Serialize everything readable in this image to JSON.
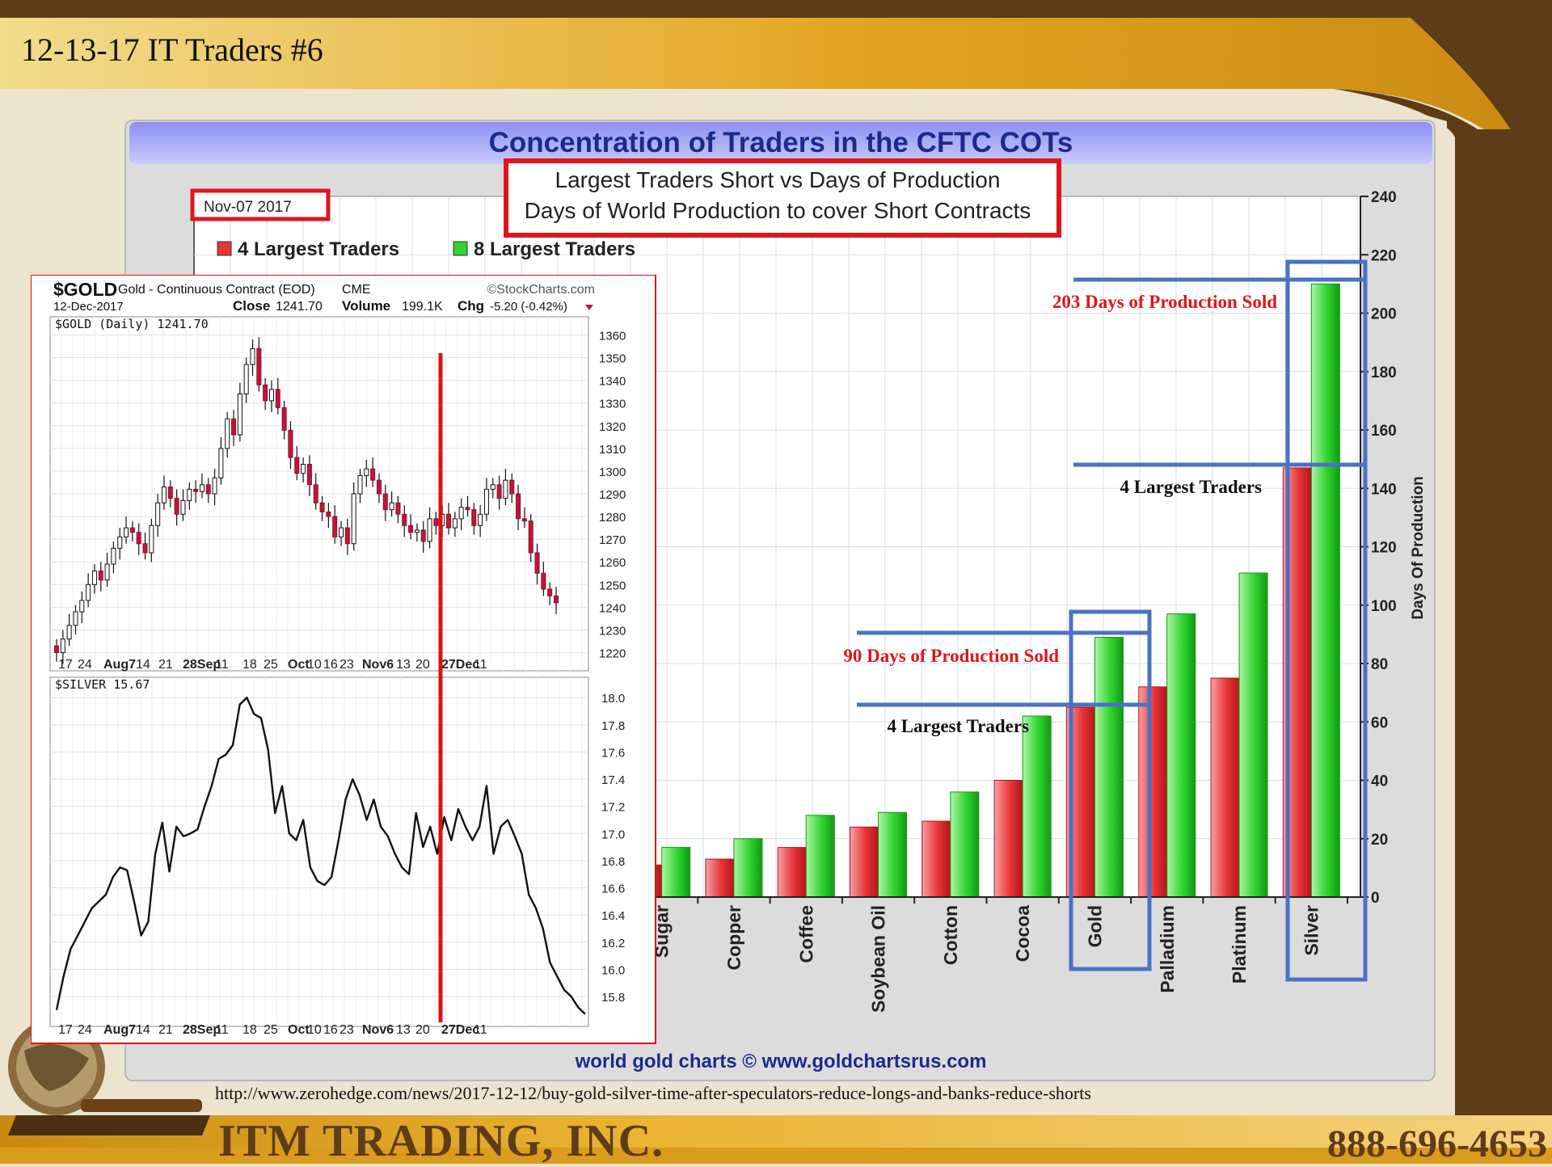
{
  "slide": {
    "title": "12-13-17 IT Traders #6",
    "source_url": "http://www.zerohedge.com/news/2017-12-12/buy-gold-silver-time-after-speculators-reduce-longs-and-banks-reduce-shorts",
    "company": "ITM TRADING, INC.",
    "phone": "888-696-4653"
  },
  "annotations": {
    "silver_top": "203 Days of Production Sold",
    "silver_bottom": "4 Largest Traders",
    "gold_top": "90 Days of Production  Sold",
    "gold_bottom": "4 Largest Traders"
  },
  "colors": {
    "red_series": "#e8343a",
    "green_series": "#2fd42f",
    "annotation_box": "#4a72c4",
    "highlight_box": "#e0151c",
    "title_blue": "#1c2a8c",
    "vertical_marker": "#dd1111"
  },
  "chart_data": [
    {
      "type": "bar",
      "title": "Concentration of Traders in the CFTC COTs",
      "subtitle": "Largest Traders Short vs Days of Production",
      "subtitle2": "Days of World Production to cover Short Contracts",
      "date_label": "Nov-07  2017",
      "credit": "world gold charts © www.goldchartsrus.com",
      "ylabel": "Days Of Production",
      "ylim": [
        0,
        240
      ],
      "yticks": [
        0,
        20,
        40,
        60,
        80,
        100,
        120,
        140,
        160,
        180,
        200,
        220,
        240
      ],
      "categories": [
        "Sugar",
        "Copper",
        "Coffee",
        "Soybean Oil",
        "Cotton",
        "Cocoa",
        "Gold",
        "Palladium",
        "Platinum",
        "Silver"
      ],
      "series": [
        {
          "name": "4 Largest Traders",
          "values": [
            11,
            13,
            17,
            24,
            26,
            40,
            65,
            72,
            75,
            147
          ]
        },
        {
          "name": "8 Largest Traders",
          "values": [
            17,
            20,
            28,
            29,
            36,
            62,
            89,
            97,
            111,
            210
          ]
        }
      ],
      "legend": "top-left",
      "grid": true
    },
    {
      "type": "candlestick",
      "symbol": "$GOLD",
      "description": "Gold - Continuous Contract (EOD)",
      "exchange": "CME",
      "brand": "©StockCharts.com",
      "date": "12-Dec-2017",
      "close_label": "Close",
      "close": "1241.70",
      "volume_label": "Volume",
      "volume": "199.1K",
      "chg_label": "Chg",
      "chg": "-5.20 (-0.42%)",
      "series_label": "$GOLD (Daily) 1241.70",
      "ylim": [
        1212,
        1368
      ],
      "yticks": [
        1220,
        1230,
        1240,
        1250,
        1260,
        1270,
        1280,
        1290,
        1300,
        1310,
        1320,
        1330,
        1340,
        1350,
        1360
      ],
      "xtick_labels": [
        "17",
        "24",
        "Aug7",
        "14",
        "21",
        "28Sep",
        "11",
        "18",
        "25",
        "Oct",
        "10",
        "16",
        "23",
        "Nov6",
        "13",
        "20",
        "27Dec",
        "11"
      ],
      "marker_date": "Nov 7",
      "closes": [
        1220,
        1226,
        1232,
        1238,
        1243,
        1250,
        1256,
        1252,
        1259,
        1266,
        1271,
        1275,
        1273,
        1268,
        1264,
        1276,
        1286,
        1293,
        1288,
        1281,
        1287,
        1292,
        1291,
        1294,
        1290,
        1297,
        1310,
        1323,
        1316,
        1334,
        1347,
        1354,
        1338,
        1331,
        1336,
        1328,
        1318,
        1306,
        1299,
        1303,
        1294,
        1286,
        1282,
        1280,
        1271,
        1275,
        1268,
        1290,
        1298,
        1301,
        1296,
        1290,
        1283,
        1286,
        1281,
        1276,
        1273,
        1274,
        1269,
        1279,
        1276,
        1281,
        1275,
        1279,
        1284,
        1283,
        1276,
        1281,
        1292,
        1294,
        1288,
        1296,
        1290,
        1279,
        1278,
        1264,
        1255,
        1248,
        1245,
        1242
      ]
    },
    {
      "type": "line",
      "series_label": "$SILVER 15.67",
      "ylim": [
        15.58,
        18.15
      ],
      "yticks": [
        15.8,
        16.0,
        16.2,
        16.4,
        16.6,
        16.8,
        17.0,
        17.2,
        17.4,
        17.6,
        17.8,
        18.0
      ],
      "xtick_labels": [
        "17",
        "24",
        "Aug7",
        "14",
        "21",
        "28Sep",
        "11",
        "18",
        "25",
        "Oct",
        "10",
        "16",
        "23",
        "Nov6",
        "13",
        "20",
        "27Dec",
        "11"
      ],
      "values": [
        15.7,
        15.95,
        16.15,
        16.25,
        16.35,
        16.45,
        16.5,
        16.55,
        16.68,
        16.75,
        16.73,
        16.5,
        16.25,
        16.35,
        16.85,
        17.08,
        16.72,
        17.05,
        16.98,
        17.0,
        17.03,
        17.2,
        17.35,
        17.55,
        17.58,
        17.65,
        17.95,
        18.0,
        17.88,
        17.85,
        17.62,
        17.15,
        17.35,
        17.0,
        16.95,
        17.1,
        16.75,
        16.65,
        16.62,
        16.68,
        16.95,
        17.25,
        17.4,
        17.28,
        17.1,
        17.25,
        17.05,
        16.98,
        16.85,
        16.75,
        16.7,
        17.15,
        16.9,
        17.05,
        16.85,
        17.12,
        16.95,
        17.18,
        17.05,
        16.95,
        17.05,
        17.35,
        16.85,
        17.05,
        17.1,
        16.98,
        16.85,
        16.55,
        16.45,
        16.3,
        16.05,
        15.95,
        15.85,
        15.8,
        15.72,
        15.67
      ]
    }
  ]
}
